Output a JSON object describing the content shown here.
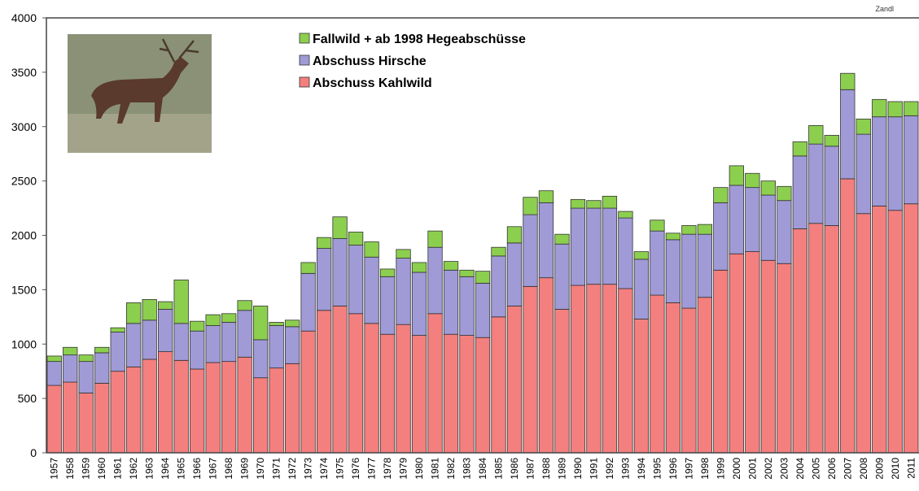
{
  "chart_data": {
    "type": "stacked-bar",
    "note_text": "Zandl",
    "categories": [
      "1957",
      "1958",
      "1959",
      "1960",
      "1961",
      "1962",
      "1963",
      "1964",
      "1965",
      "1966",
      "1967",
      "1968",
      "1969",
      "1970",
      "1971",
      "1972",
      "1973",
      "1974",
      "1975",
      "1976",
      "1977",
      "1978",
      "1979",
      "1980",
      "1981",
      "1982",
      "1983",
      "1984",
      "1985",
      "1986",
      "1987",
      "1988",
      "1989",
      "1990",
      "1991",
      "1992",
      "1993",
      "1994",
      "1995",
      "1996",
      "1997",
      "1998",
      "1999",
      "2000",
      "2001",
      "2002",
      "2003",
      "2004",
      "2005",
      "2006",
      "2007",
      "2008",
      "2009",
      "2010",
      "2011"
    ],
    "series": [
      {
        "name": "Abschuss Kahlwild",
        "color": "#f47f7f",
        "values": [
          620,
          650,
          550,
          640,
          750,
          790,
          860,
          930,
          850,
          770,
          830,
          840,
          880,
          690,
          780,
          820,
          1120,
          1310,
          1350,
          1280,
          1190,
          1090,
          1180,
          1080,
          1280,
          1090,
          1080,
          1060,
          1250,
          1350,
          1530,
          1610,
          1320,
          1540,
          1550,
          1550,
          1510,
          1230,
          1450,
          1380,
          1330,
          1430,
          1680,
          1830,
          1850,
          1770,
          1740,
          2060,
          2110,
          2090,
          2520,
          2200,
          2270,
          2230,
          2290
        ]
      },
      {
        "name": "Abschuss Hirsche",
        "color": "#a09ad6",
        "values": [
          220,
          250,
          290,
          280,
          360,
          400,
          360,
          390,
          340,
          350,
          340,
          360,
          430,
          350,
          390,
          340,
          530,
          570,
          620,
          630,
          610,
          530,
          610,
          580,
          610,
          590,
          540,
          500,
          560,
          580,
          660,
          690,
          600,
          710,
          700,
          700,
          650,
          550,
          590,
          580,
          680,
          580,
          620,
          630,
          590,
          600,
          580,
          670,
          730,
          730,
          820,
          730,
          820,
          860,
          810
        ]
      },
      {
        "name": "Fallwild + ab 1998 Hegeabschüsse",
        "color": "#8ccf4f",
        "values": [
          50,
          70,
          60,
          50,
          40,
          190,
          190,
          70,
          400,
          90,
          100,
          80,
          90,
          310,
          30,
          60,
          100,
          100,
          200,
          120,
          140,
          70,
          80,
          90,
          150,
          80,
          60,
          110,
          80,
          150,
          160,
          110,
          90,
          80,
          70,
          110,
          60,
          70,
          100,
          60,
          80,
          90,
          140,
          180,
          130,
          130,
          130,
          130,
          170,
          100,
          150,
          140,
          160,
          140,
          130
        ]
      }
    ],
    "ylim": [
      0,
      4000
    ],
    "yticks": [
      0,
      500,
      1000,
      1500,
      2000,
      2500,
      3000,
      3500,
      4000
    ]
  }
}
